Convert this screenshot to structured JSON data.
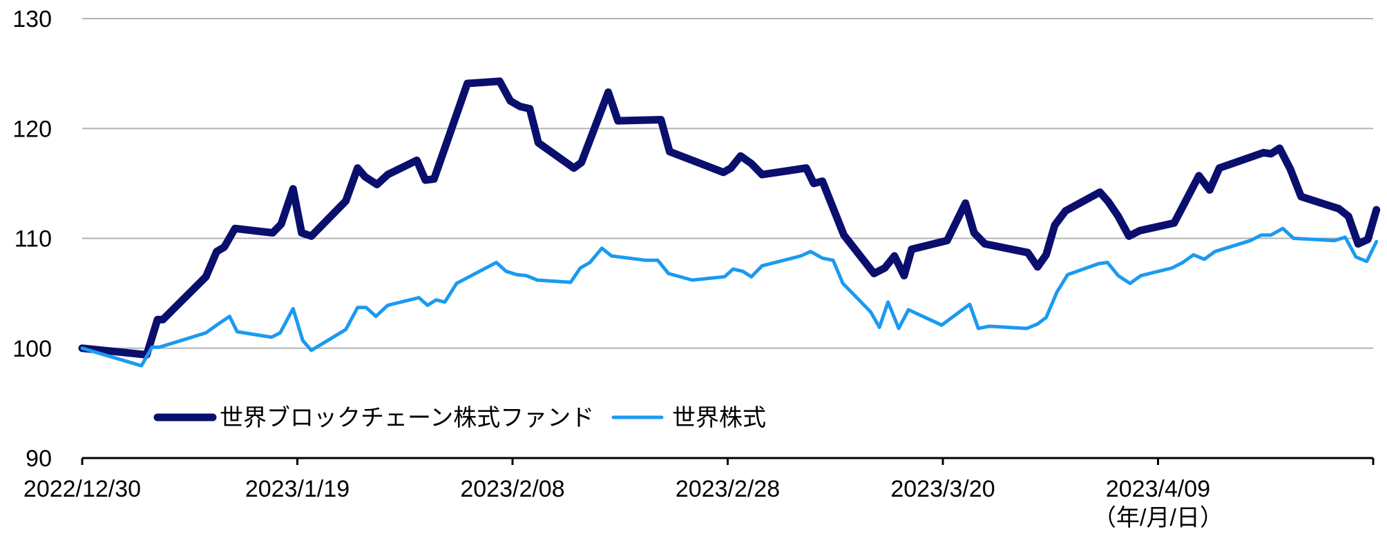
{
  "chart_data": {
    "type": "line",
    "title": "",
    "xlabel": "",
    "x_unit_label": "（年/月/日）",
    "ylabel": "",
    "ylim": [
      90,
      130
    ],
    "yticks": [
      90,
      100,
      110,
      120,
      130
    ],
    "grid": "horizontal",
    "legend_position": "lower-left",
    "x_tick_labels": [
      "2022/12/30",
      "2023/1/19",
      "2023/2/08",
      "2023/2/28",
      "2023/3/20",
      "2023/4/09"
    ],
    "x_tick_days": [
      0,
      20,
      40,
      60,
      80,
      100
    ],
    "x_end_day": 120,
    "x_axis_label": "day offset from 2022/12/30",
    "series": [
      {
        "name": "世界ブロックチェーン株式ファンド",
        "color": "#0a0f6e",
        "points": [
          [
            0,
            100
          ],
          [
            6,
            99.4
          ],
          [
            7,
            102.6
          ],
          [
            7.5,
            102.6
          ],
          [
            11.5,
            106.5
          ],
          [
            12.5,
            108.8
          ],
          [
            13.2,
            109.2
          ],
          [
            14.2,
            110.9
          ],
          [
            17.7,
            110.5
          ],
          [
            18.5,
            111.3
          ],
          [
            19.6,
            114.5
          ],
          [
            20.4,
            110.5
          ],
          [
            21.3,
            110.2
          ],
          [
            24.5,
            113.4
          ],
          [
            25.6,
            116.4
          ],
          [
            26.3,
            115.6
          ],
          [
            27.4,
            114.9
          ],
          [
            28.4,
            115.8
          ],
          [
            31.1,
            117.1
          ],
          [
            31.9,
            115.3
          ],
          [
            32.7,
            115.4
          ],
          [
            33.7,
            118.2
          ],
          [
            35.8,
            124.1
          ],
          [
            38.8,
            124.3
          ],
          [
            39.8,
            122.5
          ],
          [
            40.7,
            122
          ],
          [
            41.6,
            121.8
          ],
          [
            42.4,
            118.7
          ],
          [
            45.7,
            116.4
          ],
          [
            46.4,
            116.9
          ],
          [
            48.9,
            123.3
          ],
          [
            49.8,
            120.7
          ],
          [
            53.8,
            120.8
          ],
          [
            54.6,
            117.9
          ],
          [
            59.6,
            116
          ],
          [
            60.3,
            116.4
          ],
          [
            61.2,
            117.5
          ],
          [
            62.2,
            116.8
          ],
          [
            63.2,
            115.8
          ],
          [
            67.3,
            116.4
          ],
          [
            68,
            115
          ],
          [
            68.8,
            115.2
          ],
          [
            70.8,
            110.3
          ],
          [
            73.6,
            106.8
          ],
          [
            74.6,
            107.3
          ],
          [
            75.5,
            108.4
          ],
          [
            76.4,
            106.6
          ],
          [
            77.1,
            109
          ],
          [
            80.4,
            109.8
          ],
          [
            82.1,
            113.2
          ],
          [
            82.9,
            110.5
          ],
          [
            83.9,
            109.5
          ],
          [
            87.9,
            108.7
          ],
          [
            88.8,
            107.4
          ],
          [
            89.6,
            108.5
          ],
          [
            90.4,
            111.2
          ],
          [
            91.4,
            112.5
          ],
          [
            94.6,
            114.2
          ],
          [
            95.4,
            113.3
          ],
          [
            96.3,
            112
          ],
          [
            97.3,
            110.2
          ],
          [
            98.3,
            110.7
          ],
          [
            101.5,
            111.4
          ],
          [
            103.8,
            115.7
          ],
          [
            104.8,
            114.4
          ],
          [
            105.7,
            116.4
          ],
          [
            109.8,
            117.8
          ],
          [
            110.5,
            117.7
          ],
          [
            111.3,
            118.2
          ],
          [
            112.3,
            116.3
          ],
          [
            113.3,
            113.8
          ],
          [
            116.8,
            112.7
          ],
          [
            117.7,
            112
          ],
          [
            118.6,
            109.5
          ],
          [
            119.5,
            109.9
          ],
          [
            120.3,
            112.6
          ]
        ]
      },
      {
        "name": "世界株式",
        "color": "#1a9af0",
        "points": [
          [
            0,
            100
          ],
          [
            5.5,
            98.4
          ],
          [
            6.5,
            100.1
          ],
          [
            7.2,
            100.1
          ],
          [
            11.5,
            101.4
          ],
          [
            12.5,
            102.1
          ],
          [
            13.7,
            102.9
          ],
          [
            14.4,
            101.5
          ],
          [
            17.6,
            101
          ],
          [
            18.4,
            101.4
          ],
          [
            19.6,
            103.6
          ],
          [
            20.5,
            100.7
          ],
          [
            21.3,
            99.8
          ],
          [
            24.5,
            101.7
          ],
          [
            25.6,
            103.7
          ],
          [
            26.4,
            103.7
          ],
          [
            27.3,
            102.9
          ],
          [
            28.4,
            103.9
          ],
          [
            31.3,
            104.6
          ],
          [
            32.1,
            103.9
          ],
          [
            32.9,
            104.4
          ],
          [
            33.7,
            104.2
          ],
          [
            34.8,
            105.9
          ],
          [
            38.5,
            107.8
          ],
          [
            39.4,
            107
          ],
          [
            40.4,
            106.7
          ],
          [
            41.3,
            106.6
          ],
          [
            42.3,
            106.2
          ],
          [
            45.4,
            106
          ],
          [
            46.3,
            107.3
          ],
          [
            47.2,
            107.8
          ],
          [
            48.3,
            109.1
          ],
          [
            49.2,
            108.4
          ],
          [
            52.4,
            108
          ],
          [
            53.5,
            108
          ],
          [
            54.5,
            106.8
          ],
          [
            56.7,
            106.2
          ],
          [
            59.7,
            106.5
          ],
          [
            60.5,
            107.2
          ],
          [
            61.4,
            107
          ],
          [
            62.2,
            106.5
          ],
          [
            63.2,
            107.5
          ],
          [
            66.8,
            108.4
          ],
          [
            67.7,
            108.8
          ],
          [
            68.8,
            108.2
          ],
          [
            69.8,
            108
          ],
          [
            70.7,
            105.9
          ],
          [
            73.3,
            103.3
          ],
          [
            74.1,
            101.9
          ],
          [
            74.9,
            104.2
          ],
          [
            75.9,
            101.8
          ],
          [
            76.8,
            103.5
          ],
          [
            79.9,
            102.1
          ],
          [
            82.5,
            104
          ],
          [
            83.3,
            101.8
          ],
          [
            84.3,
            102
          ],
          [
            87.8,
            101.8
          ],
          [
            88.8,
            102.2
          ],
          [
            89.6,
            102.8
          ],
          [
            90.6,
            105.1
          ],
          [
            91.6,
            106.7
          ],
          [
            94.5,
            107.7
          ],
          [
            95.3,
            107.8
          ],
          [
            96.3,
            106.6
          ],
          [
            97.4,
            105.9
          ],
          [
            98.4,
            106.6
          ],
          [
            101.3,
            107.3
          ],
          [
            102.3,
            107.8
          ],
          [
            103.3,
            108.5
          ],
          [
            104.3,
            108.1
          ],
          [
            105.3,
            108.8
          ],
          [
            108.6,
            109.8
          ],
          [
            109.6,
            110.3
          ],
          [
            110.5,
            110.3
          ],
          [
            111.6,
            110.9
          ],
          [
            112.6,
            110
          ],
          [
            116.4,
            109.8
          ],
          [
            117.4,
            110.1
          ],
          [
            118.4,
            108.3
          ],
          [
            119.4,
            107.9
          ],
          [
            120.3,
            109.7
          ]
        ]
      }
    ]
  }
}
